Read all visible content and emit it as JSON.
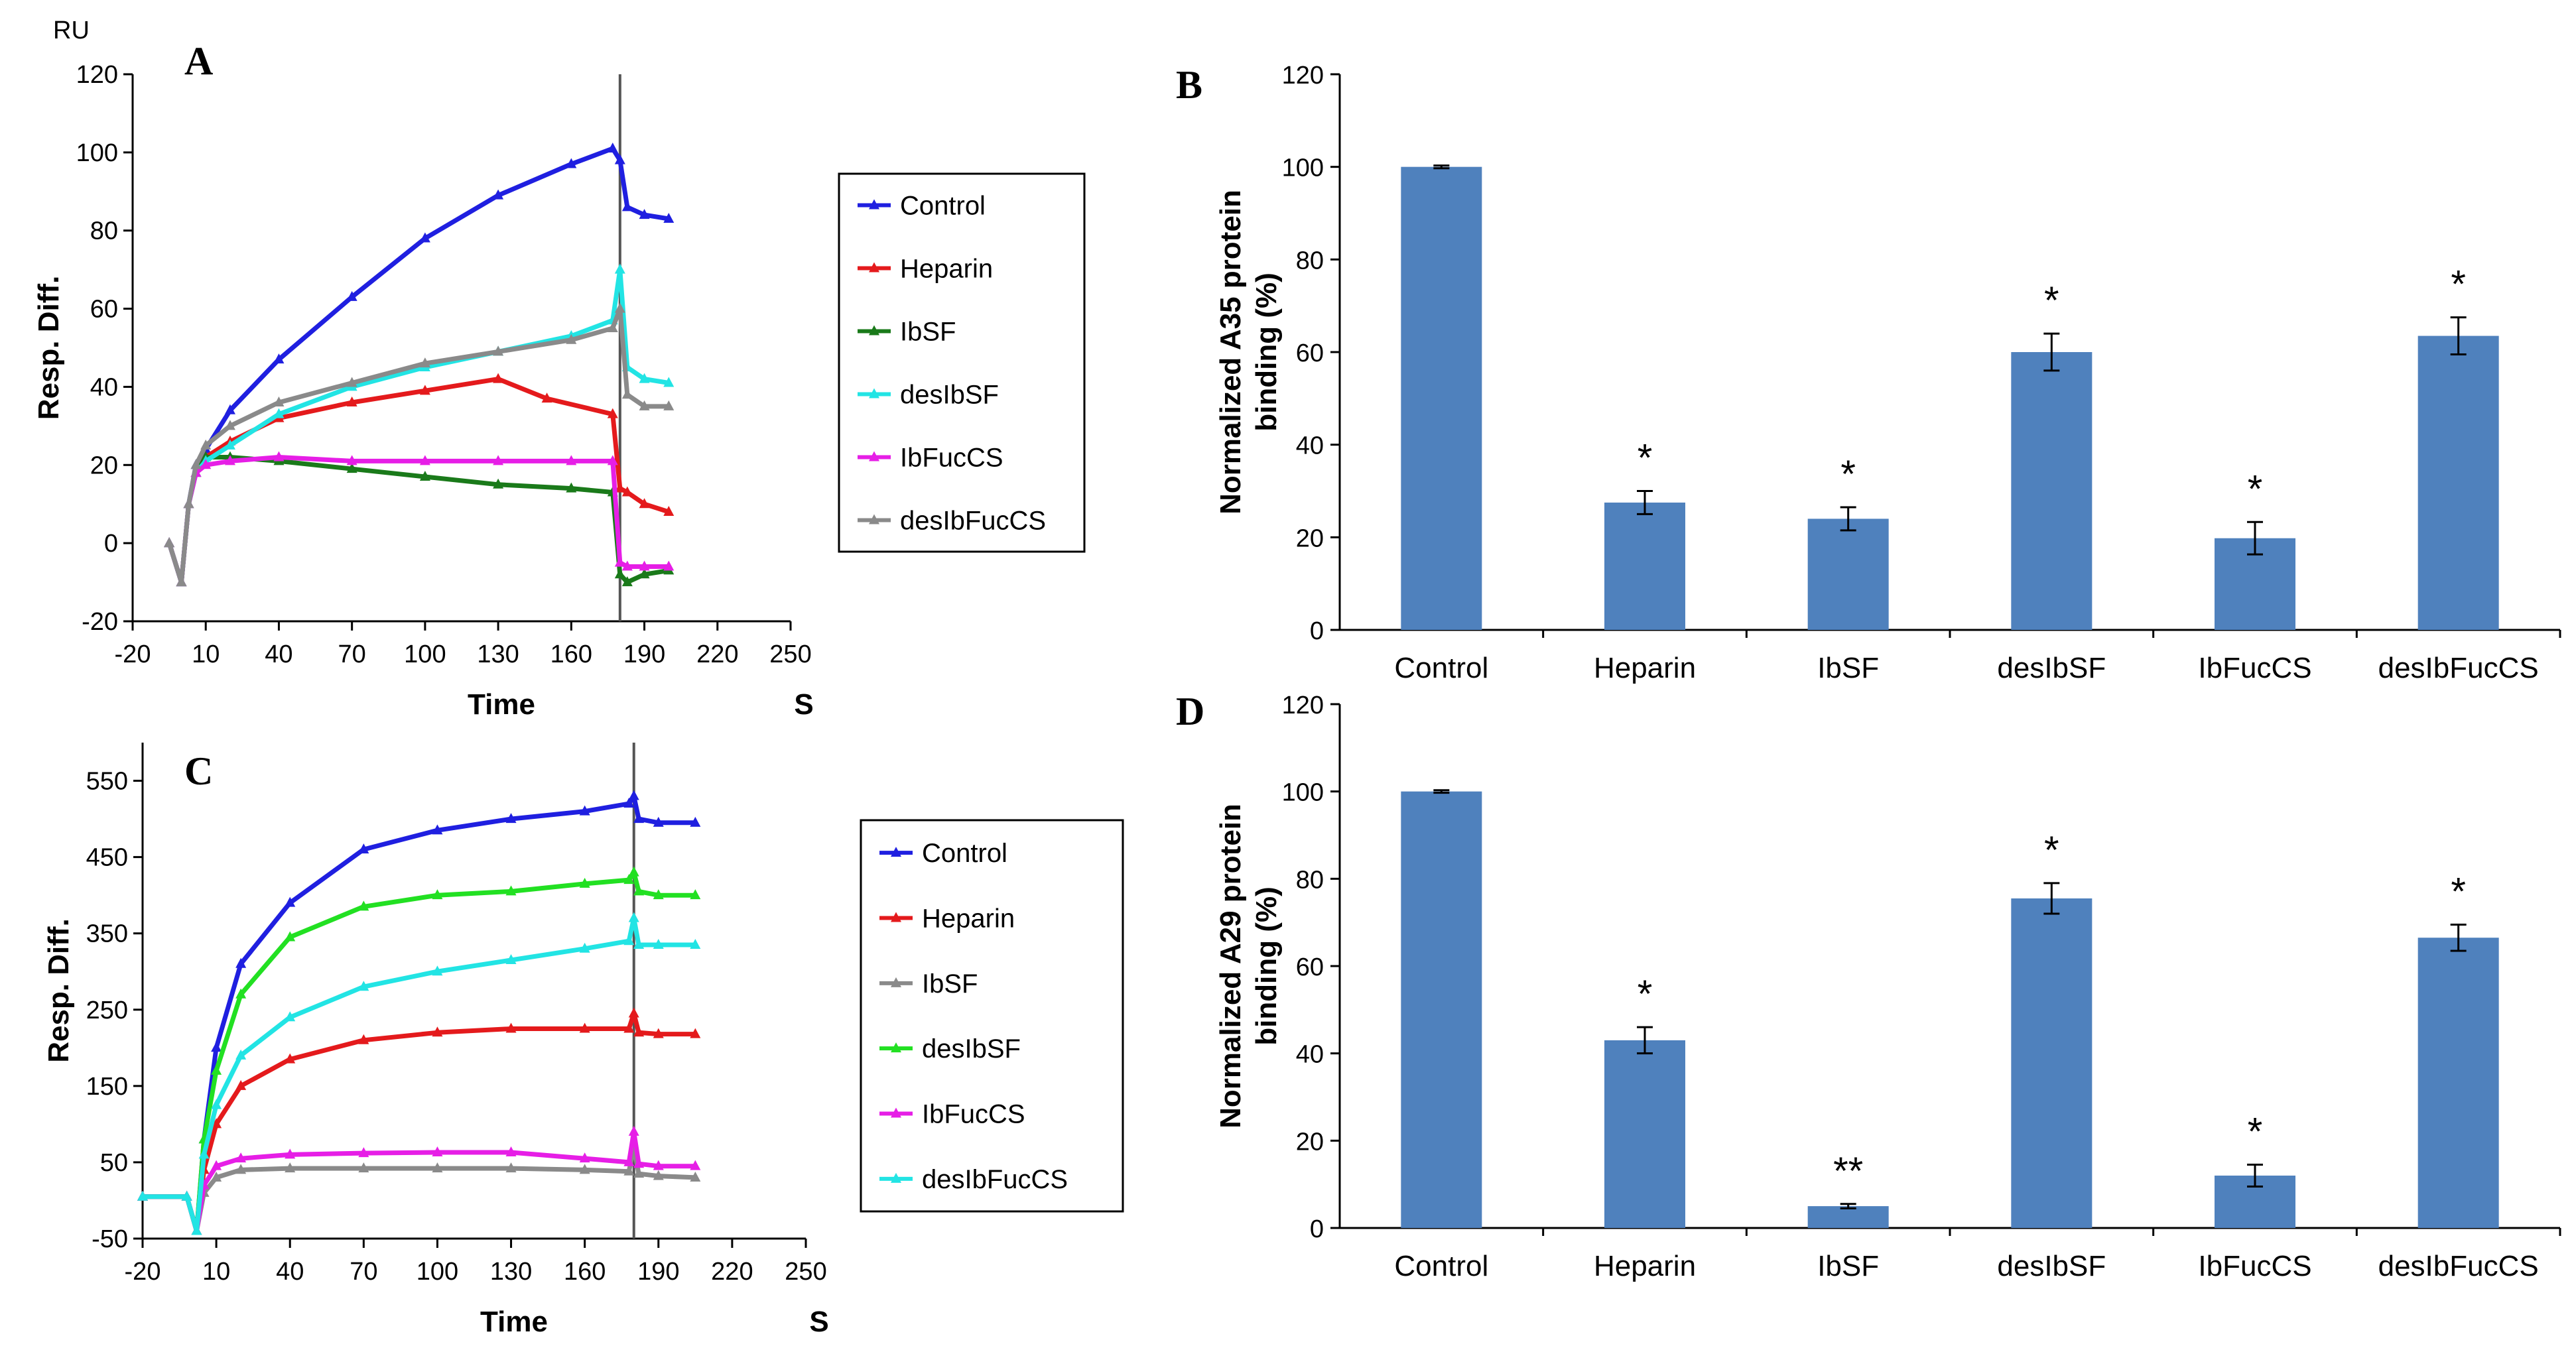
{
  "chart_data": [
    {
      "panel": "A",
      "type": "line",
      "ylabel": "Resp. Diff.",
      "yunit": "RU",
      "xlabel": "Time",
      "xunit": "S",
      "xlim": [
        -20,
        250
      ],
      "ylim": [
        -20,
        120
      ],
      "xticks": [
        -20,
        10,
        40,
        70,
        100,
        130,
        160,
        190,
        220,
        250
      ],
      "yticks": [
        -20,
        0,
        20,
        40,
        60,
        80,
        100,
        120
      ],
      "legend": {
        "position": "right"
      },
      "series": [
        {
          "name": "Control",
          "color": "#1f1fe0",
          "x": [
            -5,
            0,
            3,
            6,
            10,
            20,
            40,
            70,
            100,
            130,
            160,
            177,
            180,
            183,
            190,
            200
          ],
          "y": [
            0,
            -10,
            10,
            20,
            24,
            34,
            47,
            63,
            78,
            89,
            97,
            101,
            98,
            86,
            84,
            83
          ]
        },
        {
          "name": "Heparin",
          "color": "#e41a1c",
          "x": [
            -5,
            0,
            3,
            6,
            10,
            20,
            40,
            70,
            100,
            130,
            150,
            177,
            180,
            183,
            190,
            200
          ],
          "y": [
            0,
            -10,
            10,
            18,
            22,
            26,
            32,
            36,
            39,
            42,
            37,
            33,
            14,
            13,
            10,
            8
          ]
        },
        {
          "name": "IbSF",
          "color": "#1a7a1a",
          "x": [
            -5,
            0,
            3,
            6,
            10,
            20,
            40,
            70,
            100,
            130,
            160,
            177,
            180,
            183,
            190,
            200
          ],
          "y": [
            0,
            -10,
            10,
            18,
            22,
            22,
            21,
            19,
            17,
            15,
            14,
            13,
            -8,
            -10,
            -8,
            -7
          ]
        },
        {
          "name": "desIbSF",
          "color": "#22e4e4",
          "x": [
            -5,
            0,
            3,
            6,
            10,
            20,
            40,
            70,
            100,
            130,
            160,
            177,
            180,
            183,
            190,
            200
          ],
          "y": [
            0,
            -10,
            10,
            18,
            21,
            25,
            33,
            40,
            45,
            49,
            53,
            57,
            70,
            45,
            42,
            41
          ]
        },
        {
          "name": "IbFucCS",
          "color": "#e61ee6",
          "x": [
            -5,
            0,
            3,
            6,
            10,
            20,
            40,
            70,
            100,
            130,
            160,
            177,
            180,
            183,
            190,
            200
          ],
          "y": [
            0,
            -10,
            10,
            18,
            20,
            21,
            22,
            21,
            21,
            21,
            21,
            21,
            -5,
            -6,
            -6,
            -6
          ]
        },
        {
          "name": "desIbFucCS",
          "color": "#8a8a8a",
          "x": [
            -5,
            0,
            3,
            6,
            10,
            20,
            40,
            70,
            100,
            130,
            160,
            177,
            180,
            183,
            190,
            200
          ],
          "y": [
            0,
            -10,
            10,
            20,
            25,
            30,
            36,
            41,
            46,
            49,
            52,
            55,
            60,
            38,
            35,
            35
          ]
        }
      ]
    },
    {
      "panel": "B",
      "type": "bar",
      "ylabel": "Normalized A35 protein binding (%)",
      "ylabel_lines": [
        "Normalized  A35 protein",
        "binding (%)"
      ],
      "ylim": [
        0,
        120
      ],
      "yticks": [
        0,
        20,
        40,
        60,
        80,
        100,
        120
      ],
      "categories": [
        "Control",
        "Heparin",
        "IbSF",
        "desIbSF",
        "IbFucCS",
        "desIbFucCS"
      ],
      "values": [
        100,
        27.5,
        24,
        60,
        19.8,
        63.5
      ],
      "errors": [
        0.3,
        2.5,
        2.5,
        4,
        3.5,
        4
      ],
      "significance": [
        "",
        "*",
        "*",
        "*",
        "*",
        "*"
      ],
      "color": "#4f81bd"
    },
    {
      "panel": "C",
      "type": "line",
      "ylabel": "Resp. Diff.",
      "xlabel": "Time",
      "xunit": "S",
      "xlim": [
        -20,
        250
      ],
      "ylim": [
        -50,
        600
      ],
      "xticks": [
        -20,
        10,
        40,
        70,
        100,
        130,
        160,
        190,
        220,
        250
      ],
      "yticks": [
        -50,
        50,
        150,
        250,
        350,
        450,
        550
      ],
      "legend": {
        "position": "right"
      },
      "series": [
        {
          "name": "Control",
          "color": "#1f1fe0",
          "x": [
            -20,
            -2,
            2,
            5,
            10,
            20,
            40,
            70,
            100,
            130,
            160,
            178,
            180,
            182,
            190,
            205
          ],
          "y": [
            5,
            5,
            -40,
            80,
            200,
            310,
            390,
            460,
            485,
            500,
            510,
            520,
            530,
            500,
            495,
            495
          ]
        },
        {
          "name": "Heparin",
          "color": "#e41a1c",
          "x": [
            -20,
            -2,
            2,
            5,
            10,
            20,
            40,
            70,
            100,
            130,
            160,
            178,
            180,
            182,
            190,
            205
          ],
          "y": [
            5,
            5,
            -40,
            40,
            100,
            150,
            185,
            210,
            220,
            225,
            225,
            225,
            245,
            220,
            218,
            218
          ]
        },
        {
          "name": "IbSF",
          "color": "#8a8a8a",
          "x": [
            -20,
            -2,
            2,
            5,
            10,
            20,
            40,
            70,
            100,
            130,
            160,
            178,
            180,
            182,
            190,
            205
          ],
          "y": [
            5,
            5,
            -40,
            10,
            30,
            40,
            42,
            42,
            42,
            42,
            40,
            38,
            70,
            35,
            32,
            30
          ]
        },
        {
          "name": "desIbSF",
          "color": "#22e022",
          "x": [
            -20,
            -2,
            2,
            5,
            10,
            20,
            40,
            70,
            100,
            130,
            160,
            178,
            180,
            182,
            190,
            205
          ],
          "y": [
            5,
            5,
            -40,
            80,
            170,
            270,
            345,
            385,
            400,
            405,
            415,
            420,
            430,
            405,
            400,
            400
          ]
        },
        {
          "name": "IbFucCS",
          "color": "#e61ee6",
          "x": [
            -20,
            -2,
            2,
            5,
            10,
            20,
            40,
            70,
            100,
            130,
            160,
            178,
            180,
            182,
            190,
            205
          ],
          "y": [
            5,
            5,
            -40,
            20,
            45,
            55,
            60,
            62,
            63,
            63,
            55,
            50,
            90,
            48,
            45,
            45
          ]
        },
        {
          "name": "desIbFucCS",
          "color": "#22e4e4",
          "x": [
            -20,
            -2,
            2,
            5,
            10,
            20,
            40,
            70,
            100,
            130,
            160,
            178,
            180,
            182,
            190,
            205
          ],
          "y": [
            5,
            5,
            -40,
            60,
            125,
            190,
            240,
            280,
            300,
            315,
            330,
            340,
            370,
            335,
            335,
            335
          ]
        }
      ]
    },
    {
      "panel": "D",
      "type": "bar",
      "ylabel": "Normalized A29 protein binding (%)",
      "ylabel_lines": [
        "Normalized A29 protein",
        "binding (%)"
      ],
      "ylim": [
        0,
        120
      ],
      "yticks": [
        0,
        20,
        40,
        60,
        80,
        100,
        120
      ],
      "categories": [
        "Control",
        "Heparin",
        "IbSF",
        "desIbSF",
        "IbFucCS",
        "desIbFucCS"
      ],
      "values": [
        100,
        43,
        5,
        75.5,
        12,
        66.5
      ],
      "errors": [
        0.3,
        3,
        0.5,
        3.5,
        2.5,
        3
      ],
      "significance": [
        "",
        "*",
        "**",
        "*",
        "*",
        "*"
      ],
      "color": "#4f81bd"
    }
  ]
}
